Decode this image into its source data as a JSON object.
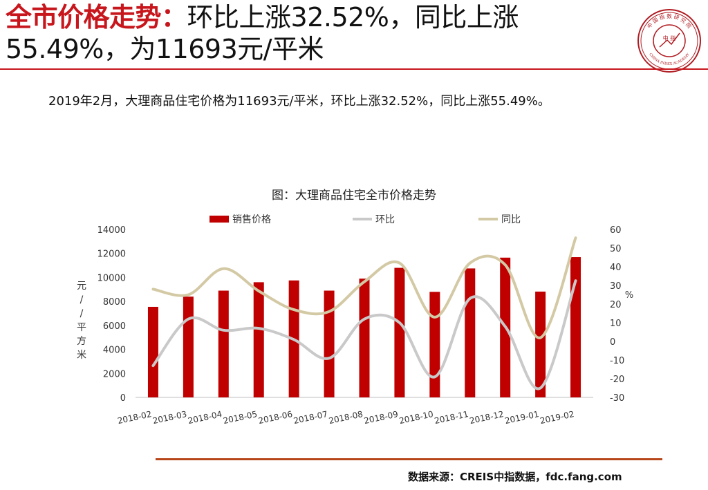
{
  "slide": {
    "title_accent": "全市价格走势：",
    "title_rest": "环比上涨32.52%，同比上涨55.49%，为11693元/平米",
    "summary": "2019年2月，大理商品住宅价格为11693元/平米，环比上涨32.52%，同比上涨55.49%。",
    "source": "数据来源：CREIS中指数据，fdc.fang.com",
    "logo": {
      "icon": "china-index-academy-seal-icon",
      "arc_text": "中 国 指 数 研 究 院",
      "center_text": "中 指",
      "bottom_text": "CHINA INDEX ACADEMY"
    }
  },
  "colors": {
    "accent": "#c8161d",
    "bar": "#c00000",
    "mom_line": "#c9c9c9",
    "yoy_line": "#d3c9a4",
    "rule_bottom": "#b7471b"
  },
  "chart_data": {
    "type": "bar",
    "title": "图：大理商品住宅全市价格走势",
    "categories": [
      "2018-02",
      "2018-03",
      "2018-04",
      "2018-05",
      "2018-06",
      "2018-07",
      "2018-08",
      "2018-09",
      "2018-10",
      "2018-11",
      "2018-12",
      "2019-01",
      "2019-02"
    ],
    "series": [
      {
        "name": "销售价格",
        "kind": "bar",
        "axis": "left",
        "values": [
          7550,
          8400,
          8900,
          9600,
          9750,
          8900,
          9900,
          10800,
          8800,
          10750,
          11650,
          8820,
          11693
        ]
      },
      {
        "name": "环比",
        "kind": "line",
        "axis": "right",
        "values": [
          -13,
          12,
          6,
          7,
          1,
          -9,
          12,
          10,
          -19,
          23,
          8,
          -25,
          32.52
        ]
      },
      {
        "name": "同比",
        "kind": "line",
        "axis": "right",
        "values": [
          28,
          25,
          39,
          27,
          17,
          16,
          32,
          42,
          13,
          42,
          41,
          2,
          55.49
        ]
      }
    ],
    "ylabel_left": "元/平方米",
    "ylabel_right": "%",
    "ylim_left": [
      0,
      14000
    ],
    "yticks_left": [
      0,
      2000,
      4000,
      6000,
      8000,
      10000,
      12000,
      14000
    ],
    "ylim_right": [
      -30,
      60
    ],
    "yticks_right": [
      -30,
      -20,
      -10,
      0,
      10,
      20,
      30,
      40,
      50,
      60
    ],
    "legend_position": "top",
    "grid": false
  }
}
